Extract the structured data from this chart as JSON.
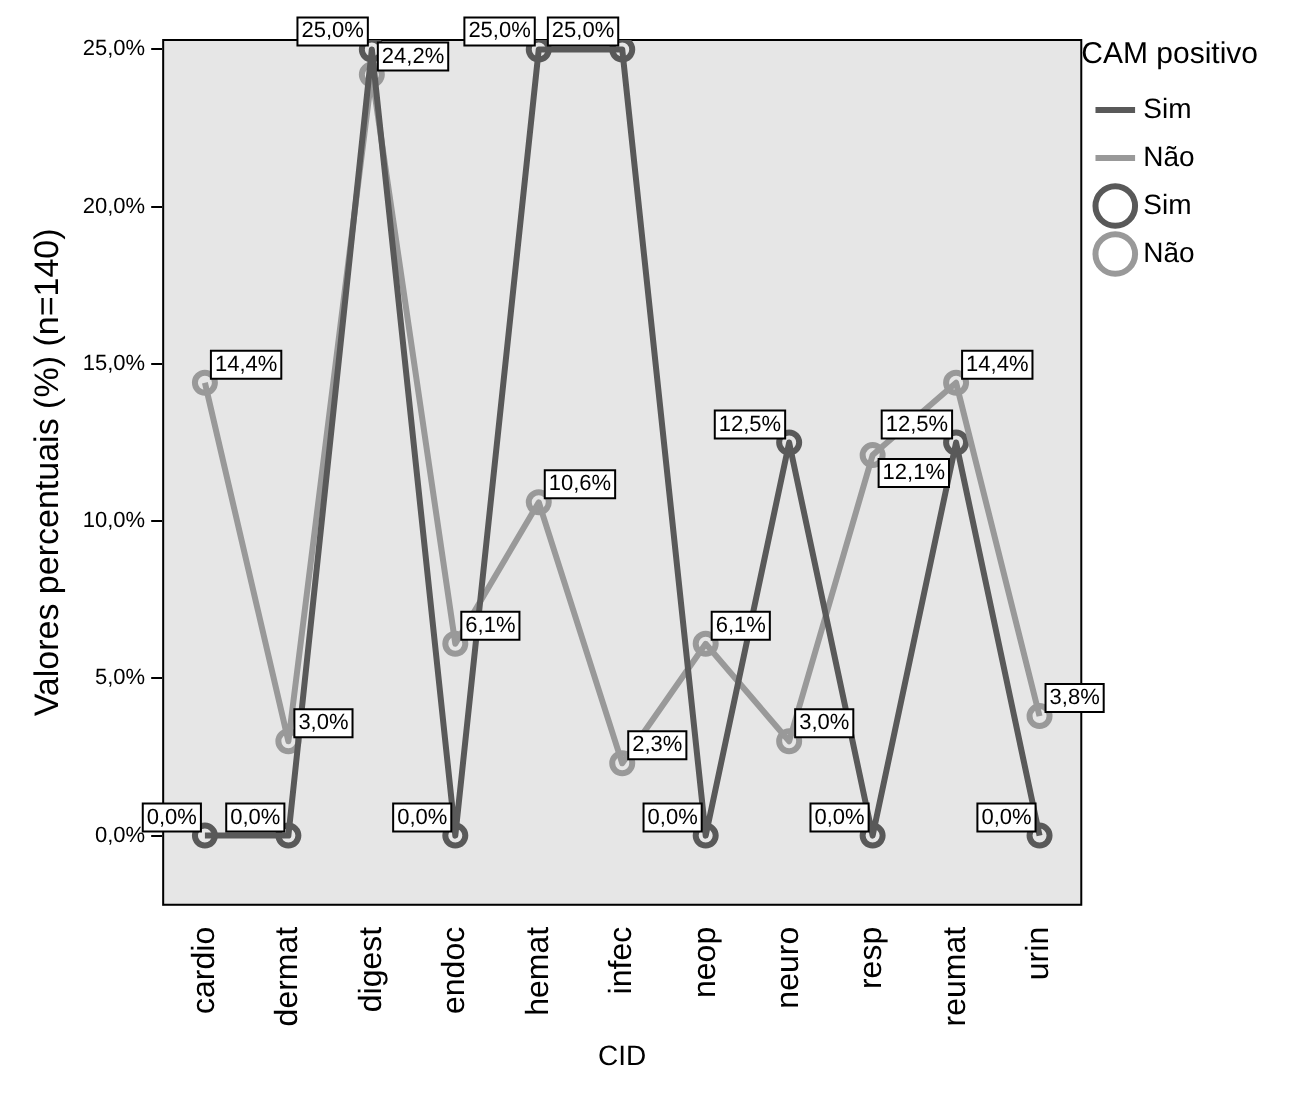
{
  "chart_data": {
    "type": "line",
    "xlabel": "CID",
    "ylabel": "Valores percentuais (%) (n=140)",
    "legend_title": "CAM positivo",
    "legend": "top right",
    "grid": false,
    "categories": [
      "cardio",
      "dermat",
      "digest",
      "endoc",
      "hemat",
      "infec",
      "neop",
      "neuro",
      "resp",
      "reumat",
      "urin"
    ],
    "ylim": [
      -2.2,
      25.3
    ],
    "yticks": [
      {
        "value": 0,
        "label": "0,0%"
      },
      {
        "value": 5,
        "label": "5,0%"
      },
      {
        "value": 10,
        "label": "10,0%"
      },
      {
        "value": 15,
        "label": "15,0%"
      },
      {
        "value": 20,
        "label": "20,0%"
      },
      {
        "value": 25,
        "label": "25,0%"
      }
    ],
    "series": [
      {
        "name": "Sim",
        "type": "line",
        "marker": "none",
        "color": "#595959",
        "values": [
          0,
          0,
          25,
          0,
          25,
          25,
          0,
          12.5,
          0,
          12.5,
          0
        ]
      },
      {
        "name": "Não",
        "type": "line",
        "marker": "none",
        "color": "#999999",
        "values": [
          14.4,
          3.0,
          24.2,
          6.1,
          10.6,
          2.3,
          6.1,
          3.0,
          12.1,
          14.4,
          3.8
        ]
      },
      {
        "name": "Sim",
        "type": "scatter",
        "marker": "circle",
        "color": "#595959",
        "values": [
          0,
          0,
          25,
          0,
          25,
          25,
          0,
          12.5,
          0,
          12.5,
          0
        ],
        "value_labels": [
          "0,0%",
          "0,0%",
          "25,0%",
          "0,0%",
          "25,0%",
          "25,0%",
          "0,0%",
          "12,5%",
          "0,0%",
          "12,5%",
          "0,0%"
        ]
      },
      {
        "name": "Não",
        "type": "scatter",
        "marker": "circle",
        "color": "#999999",
        "values": [
          14.4,
          3.0,
          24.2,
          6.1,
          10.6,
          2.3,
          6.1,
          3.0,
          12.1,
          14.4,
          3.8
        ],
        "value_labels": [
          "14,4%",
          "3,0%",
          "24,2%",
          "6,1%",
          "10,6%",
          "2,3%",
          "6,1%",
          "3,0%",
          "12,1%",
          "14,4%",
          "3,8%"
        ]
      }
    ]
  }
}
